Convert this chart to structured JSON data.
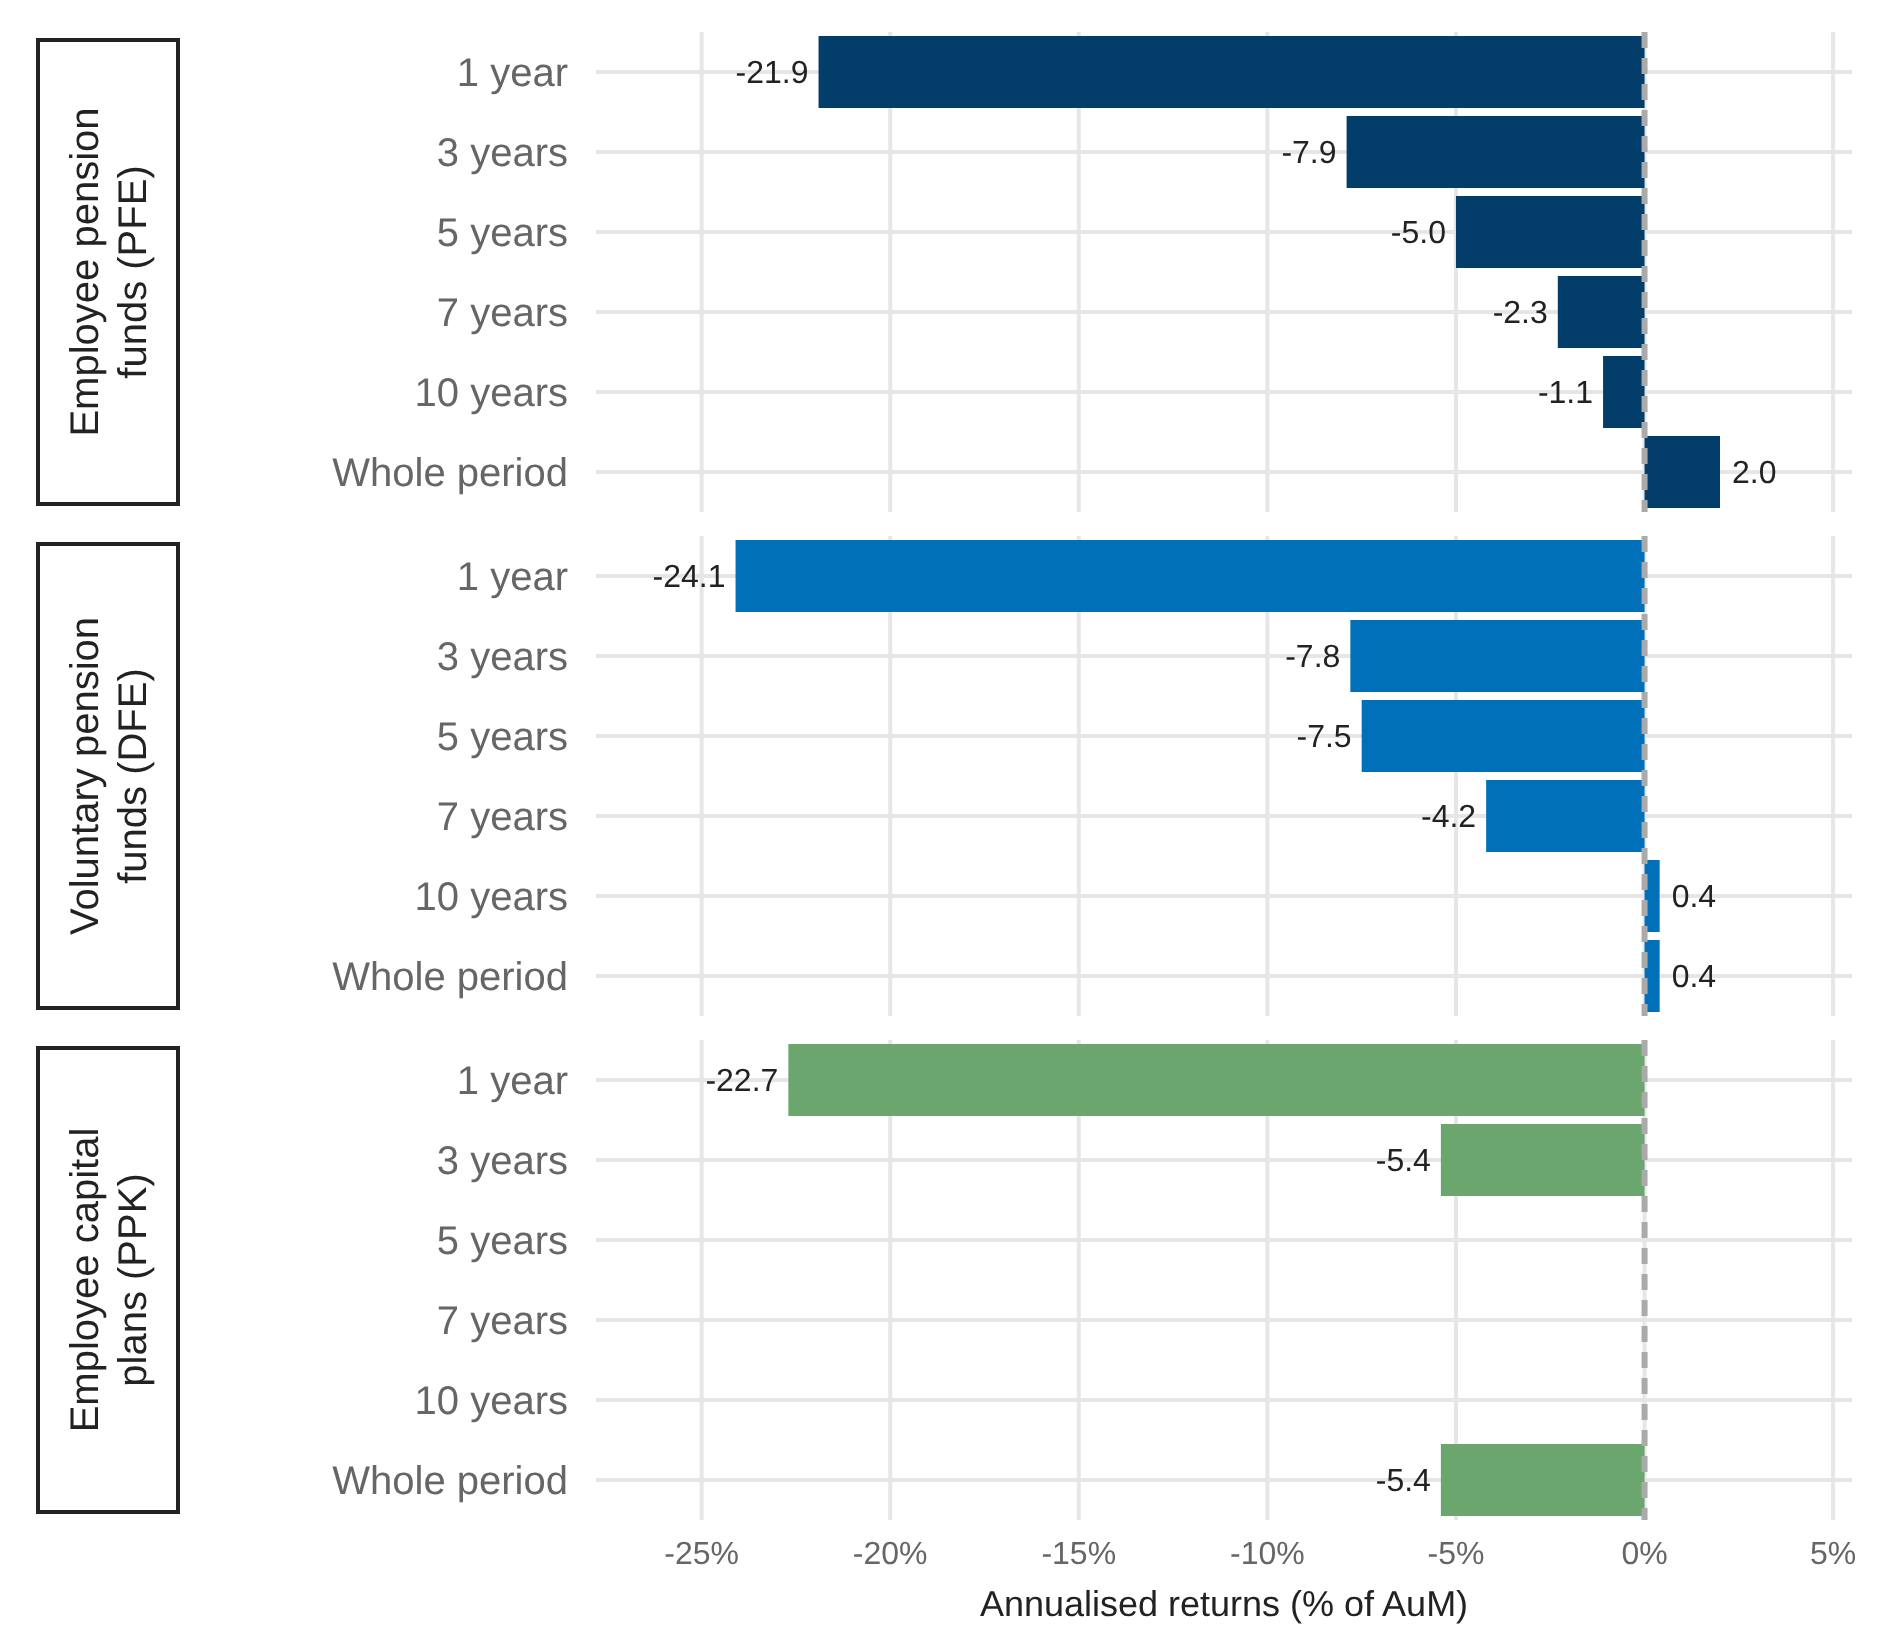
{
  "chart_data": [
    {
      "type": "bar",
      "orientation": "horizontal",
      "title": "Employee pension funds (PFE)",
      "categories": [
        "1 year",
        "3 years",
        "5 years",
        "7 years",
        "10 years",
        "Whole period"
      ],
      "series": [
        {
          "color": "#033e6b",
          "values": [
            -21.9,
            -7.9,
            -5.0,
            -2.3,
            -1.1,
            2.0
          ],
          "value_labels": [
            "-21.9",
            "-7.9",
            "-5.0",
            "-2.3",
            "-1.1",
            "2.0"
          ]
        }
      ],
      "xlim": [
        -27.8,
        5.5
      ],
      "xticks": [
        {
          "value": -25,
          "label": null
        },
        {
          "value": -20,
          "label": null
        },
        {
          "value": -15,
          "label": null
        },
        {
          "value": -10,
          "label": null
        },
        {
          "value": -5,
          "label": null
        },
        {
          "value": 0,
          "label": null
        },
        {
          "value": 5,
          "label": null
        }
      ],
      "tick_labels": "y",
      "grid": true,
      "ref_lines": [
        {
          "axis": "x",
          "value": 0,
          "color": "#aaaaaa",
          "line_style": "dashed"
        }
      ]
    },
    {
      "type": "bar",
      "orientation": "horizontal",
      "title": "Voluntary pension funds (DFE)",
      "categories": [
        "1 year",
        "3 years",
        "5 years",
        "7 years",
        "10 years",
        "Whole period"
      ],
      "series": [
        {
          "color": "#0070b8",
          "values": [
            -24.1,
            -7.8,
            -7.5,
            -4.2,
            0.4,
            0.4
          ],
          "value_labels": [
            "-24.1",
            "-7.8",
            "-7.5",
            "-4.2",
            "0.4",
            "0.4"
          ]
        }
      ],
      "xlim": [
        -27.8,
        5.5
      ],
      "xticks": [
        {
          "value": -25,
          "label": null
        },
        {
          "value": -20,
          "label": null
        },
        {
          "value": -15,
          "label": null
        },
        {
          "value": -10,
          "label": null
        },
        {
          "value": -5,
          "label": null
        },
        {
          "value": 0,
          "label": null
        },
        {
          "value": 5,
          "label": null
        }
      ],
      "tick_labels": "y",
      "grid": true,
      "ref_lines": [
        {
          "axis": "x",
          "value": 0,
          "color": "#aaaaaa",
          "line_style": "dashed"
        }
      ]
    },
    {
      "type": "bar",
      "orientation": "horizontal",
      "title": "Employee capital plans (PPK)",
      "xlabel": "Annualised returns (% of AuM)",
      "categories": [
        "1 year",
        "3 years",
        "5 years",
        "7 years",
        "10 years",
        "Whole period"
      ],
      "series": [
        {
          "color": "#6aa66e",
          "values": [
            -22.7,
            -5.4,
            null,
            null,
            null,
            -5.4
          ],
          "value_labels": [
            "-22.7",
            "-5.4",
            null,
            null,
            null,
            "-5.4"
          ]
        }
      ],
      "xlim": [
        -27.8,
        5.5
      ],
      "xticks": [
        {
          "value": -25,
          "label": "-25%"
        },
        {
          "value": -20,
          "label": "-20%"
        },
        {
          "value": -15,
          "label": "-15%"
        },
        {
          "value": -10,
          "label": "-10%"
        },
        {
          "value": -5,
          "label": "-5%"
        },
        {
          "value": 0,
          "label": "0%"
        },
        {
          "value": 5,
          "label": "5%"
        }
      ],
      "grid": true,
      "ref_lines": [
        {
          "axis": "x",
          "value": 0,
          "color": "#aaaaaa",
          "line_style": "dashed"
        }
      ]
    }
  ]
}
